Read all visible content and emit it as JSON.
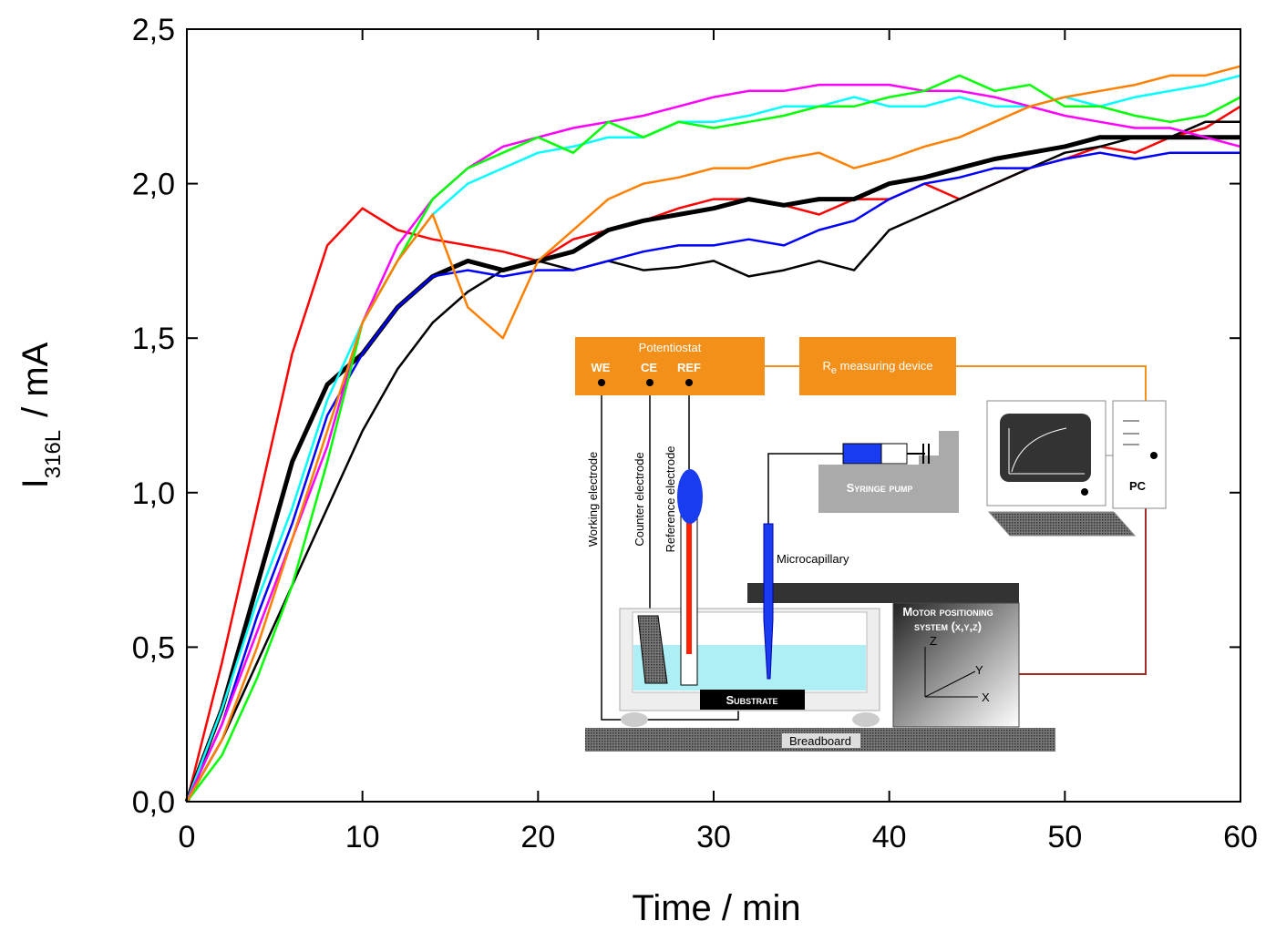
{
  "chart_data": {
    "type": "line",
    "xlabel": "Time / min",
    "ylabel": {
      "main": "I",
      "sub": "316L",
      "unit": "/ mA"
    },
    "x": [
      0,
      2,
      4,
      6,
      8,
      10,
      12,
      14,
      16,
      18,
      20,
      22,
      24,
      26,
      28,
      30,
      32,
      34,
      36,
      38,
      40,
      42,
      44,
      46,
      48,
      50,
      52,
      54,
      56,
      58,
      60
    ],
    "series": [
      {
        "color": "#ff0000",
        "values": [
          0,
          0.45,
          0.95,
          1.45,
          1.8,
          1.92,
          1.85,
          1.82,
          1.8,
          1.78,
          1.75,
          1.82,
          1.85,
          1.88,
          1.92,
          1.95,
          1.95,
          1.93,
          1.9,
          1.95,
          1.95,
          2.0,
          1.95,
          2.0,
          2.05,
          2.08,
          2.12,
          2.1,
          2.15,
          2.18,
          2.25
        ]
      },
      {
        "color": "#000000",
        "width": 5,
        "values": [
          0,
          0.3,
          0.7,
          1.1,
          1.35,
          1.45,
          1.6,
          1.7,
          1.75,
          1.72,
          1.75,
          1.78,
          1.85,
          1.88,
          1.9,
          1.92,
          1.95,
          1.93,
          1.95,
          1.95,
          2.0,
          2.02,
          2.05,
          2.08,
          2.1,
          2.12,
          2.15,
          2.15,
          2.15,
          2.15,
          2.15
        ]
      },
      {
        "color": "#000000",
        "values": [
          0,
          0.2,
          0.45,
          0.7,
          0.95,
          1.2,
          1.4,
          1.55,
          1.65,
          1.72,
          1.75,
          1.72,
          1.75,
          1.72,
          1.73,
          1.75,
          1.7,
          1.72,
          1.75,
          1.72,
          1.85,
          1.9,
          1.95,
          2.0,
          2.05,
          2.1,
          2.12,
          2.15,
          2.15,
          2.2,
          2.2
        ]
      },
      {
        "color": "#0000ff",
        "values": [
          0,
          0.25,
          0.6,
          0.9,
          1.25,
          1.45,
          1.6,
          1.7,
          1.72,
          1.7,
          1.72,
          1.72,
          1.75,
          1.78,
          1.8,
          1.8,
          1.82,
          1.8,
          1.85,
          1.88,
          1.95,
          2.0,
          2.02,
          2.05,
          2.05,
          2.08,
          2.1,
          2.08,
          2.1,
          2.1,
          2.1
        ]
      },
      {
        "color": "#00ffff",
        "values": [
          0,
          0.3,
          0.65,
          0.95,
          1.3,
          1.55,
          1.75,
          1.9,
          2.0,
          2.05,
          2.1,
          2.12,
          2.15,
          2.15,
          2.2,
          2.2,
          2.22,
          2.25,
          2.25,
          2.28,
          2.25,
          2.25,
          2.28,
          2.25,
          2.25,
          2.28,
          2.25,
          2.28,
          2.3,
          2.32,
          2.35
        ]
      },
      {
        "color": "#ff00ff",
        "values": [
          0,
          0.25,
          0.55,
          0.85,
          1.15,
          1.55,
          1.8,
          1.95,
          2.05,
          2.12,
          2.15,
          2.18,
          2.2,
          2.22,
          2.25,
          2.28,
          2.3,
          2.3,
          2.32,
          2.32,
          2.32,
          2.3,
          2.3,
          2.28,
          2.25,
          2.22,
          2.2,
          2.18,
          2.18,
          2.15,
          2.12
        ]
      },
      {
        "color": "#00ff00",
        "values": [
          0,
          0.15,
          0.4,
          0.7,
          1.1,
          1.55,
          1.75,
          1.95,
          2.05,
          2.1,
          2.15,
          2.1,
          2.2,
          2.15,
          2.2,
          2.18,
          2.2,
          2.22,
          2.25,
          2.25,
          2.28,
          2.3,
          2.35,
          2.3,
          2.32,
          2.25,
          2.25,
          2.22,
          2.2,
          2.22,
          2.28
        ]
      },
      {
        "color": "#ff8000",
        "values": [
          0,
          0.2,
          0.5,
          0.85,
          1.2,
          1.55,
          1.75,
          1.9,
          1.6,
          1.5,
          1.75,
          1.85,
          1.95,
          2.0,
          2.02,
          2.05,
          2.05,
          2.08,
          2.1,
          2.05,
          2.08,
          2.12,
          2.15,
          2.2,
          2.25,
          2.28,
          2.3,
          2.32,
          2.35,
          2.35,
          2.38
        ]
      }
    ],
    "xlim": [
      0,
      60
    ],
    "xticks": [
      0,
      10,
      20,
      30,
      40,
      50,
      60
    ],
    "ylim": [
      0,
      2.5
    ],
    "yticks": [
      {
        "value": 0,
        "label": "0,0"
      },
      {
        "value": 0.5,
        "label": "0,5"
      },
      {
        "value": 1,
        "label": "1,0"
      },
      {
        "value": 1.5,
        "label": "1,5"
      },
      {
        "value": 2,
        "label": "2,0"
      },
      {
        "value": 2.5,
        "label": "2,5"
      }
    ]
  },
  "inset": {
    "potentiostat": "Potentiostat",
    "we": "WE",
    "ce": "CE",
    "ref": "REF",
    "re_device": {
      "main": "R",
      "sub": "e",
      "rest": " measuring device"
    },
    "working_electrode": "Working electrode",
    "counter_electrode": "Counter electrode",
    "reference_electrode": "Reference electrode",
    "syringe_pump": "Syringe pump",
    "microcapillary": "Microcapillary",
    "pc": "PC",
    "motor_line1": "Motor positioning",
    "motor_line2": "system (x,y,z)",
    "axis_z": "Z",
    "axis_y": "Y",
    "axis_x": "X",
    "substrate": "Substrate",
    "breadboard": "Breadboard"
  }
}
